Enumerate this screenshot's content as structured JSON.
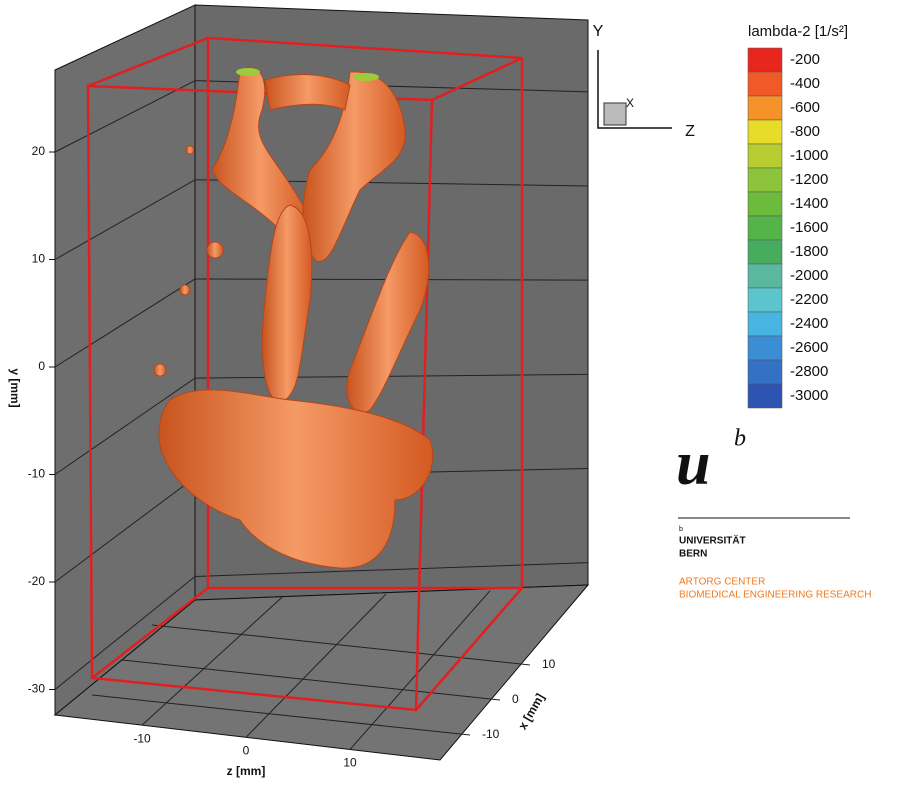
{
  "axes": {
    "y": {
      "label": "y [mm]",
      "ticks": [
        20,
        10,
        0,
        -10,
        -20,
        -30
      ]
    },
    "z": {
      "label": "z [mm]",
      "ticks": [
        -10,
        0,
        10
      ]
    },
    "x": {
      "label": "x [mm]",
      "ticks": [
        10,
        0,
        -10
      ]
    }
  },
  "triad": {
    "y": "Y",
    "x": "X",
    "z": "Z"
  },
  "legend": {
    "title": "lambda-2 [1/s²]",
    "levels": [
      {
        "value": -200,
        "color": "#e8261e"
      },
      {
        "value": -400,
        "color": "#f05a28"
      },
      {
        "value": -600,
        "color": "#f5922a"
      },
      {
        "value": -800,
        "color": "#e8dc2a"
      },
      {
        "value": -1000,
        "color": "#b7cc30"
      },
      {
        "value": -1200,
        "color": "#8cc43c"
      },
      {
        "value": -1400,
        "color": "#6cbb3c"
      },
      {
        "value": -1600,
        "color": "#54b44a"
      },
      {
        "value": -1800,
        "color": "#46ad5e"
      },
      {
        "value": -2000,
        "color": "#5ab8a0"
      },
      {
        "value": -2200,
        "color": "#5cc4cc"
      },
      {
        "value": -2400,
        "color": "#48b4e0"
      },
      {
        "value": -2600,
        "color": "#3c8ed4"
      },
      {
        "value": -2800,
        "color": "#3470c4"
      },
      {
        "value": -3000,
        "color": "#2c54b0"
      }
    ]
  },
  "logo": {
    "mark": "u",
    "superscript": "b",
    "small": "b",
    "university": "UNIVERSITÄT",
    "city": "BERN",
    "center": "ARTORG CENTER",
    "subtitle": "BIOMEDICAL ENGINEERING RESEARCH"
  }
}
